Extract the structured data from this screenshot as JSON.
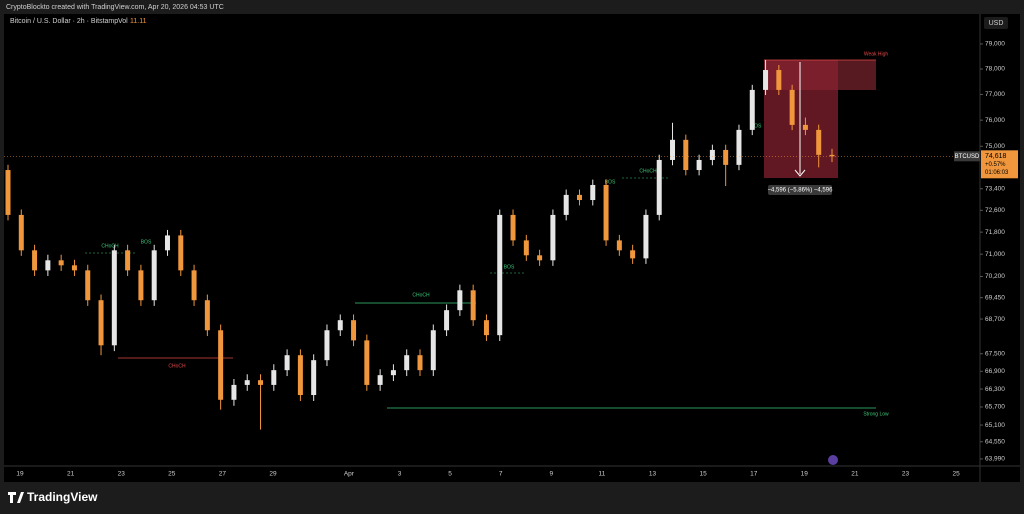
{
  "chart_data": {
    "type": "candlestick",
    "watermark": "CryptoBlockto created with TradingView.com, Apr 20, 2026 04:53 UTC",
    "title": "Bitcoin / U.S. Dollar · 2h · Bitstamp",
    "volume_label": "Vol",
    "volume_value": "11.11",
    "currency": "USD",
    "brand": "TradingView",
    "log_scale": true,
    "up_color": "#e6e6e6",
    "down_color": "#f0963c",
    "ylim": [
      63760,
      80210
    ],
    "yticks": [
      {
        "value": 79000,
        "label": "79,000"
      },
      {
        "value": 78000,
        "label": "78,000"
      },
      {
        "value": 77000,
        "label": "77,000"
      },
      {
        "value": 76000,
        "label": "76,000"
      },
      {
        "value": 75000,
        "label": "75,000"
      },
      {
        "value": 73400,
        "label": "73,400"
      },
      {
        "value": 72600,
        "label": "72,600"
      },
      {
        "value": 71800,
        "label": "71,800"
      },
      {
        "value": 71000,
        "label": "71,000"
      },
      {
        "value": 70200,
        "label": "70,200"
      },
      {
        "value": 69450,
        "label": "69,450"
      },
      {
        "value": 68700,
        "label": "68,700"
      },
      {
        "value": 67500,
        "label": "67,500"
      },
      {
        "value": 66900,
        "label": "66,900"
      },
      {
        "value": 66300,
        "label": "66,300"
      },
      {
        "value": 65700,
        "label": "65,700"
      },
      {
        "value": 65100,
        "label": "65,100"
      },
      {
        "value": 64550,
        "label": "64,550"
      },
      {
        "value": 63990,
        "label": "63,990"
      }
    ],
    "x_tick_labels": [
      "19",
      "21",
      "23",
      "25",
      "27",
      "29",
      "Apr",
      "3",
      "5",
      "7",
      "9",
      "11",
      "13",
      "15",
      "17",
      "19",
      "21",
      "23",
      "25"
    ],
    "open": [
      74100,
      72430,
      71140,
      70420,
      70780,
      70600,
      70420,
      69360,
      67790,
      71140,
      70420,
      69360,
      71140,
      71680,
      70420,
      69360,
      68310,
      65940,
      66440,
      66600,
      66440,
      66940,
      67450,
      66100,
      67280,
      68310,
      68660,
      67960,
      66440,
      66770,
      66940,
      67450,
      66940,
      68310,
      69010,
      69710,
      68660,
      68140,
      72430,
      71500,
      70960,
      70780,
      72430,
      73170,
      72980,
      73540,
      71500,
      71140,
      70850,
      72430,
      74480,
      75245,
      74100,
      74480,
      74860,
      74294,
      75626,
      77177,
      77960,
      77177,
      75818,
      75626,
      74673
    ],
    "high": [
      74300,
      72630,
      71340,
      70980,
      70980,
      70800,
      70620,
      69560,
      71340,
      71340,
      70620,
      71340,
      71880,
      71880,
      70620,
      69560,
      68510,
      66640,
      66800,
      66800,
      67140,
      67650,
      67650,
      67480,
      68510,
      68860,
      68860,
      68160,
      66970,
      67140,
      67650,
      67650,
      68510,
      69210,
      69910,
      69910,
      68860,
      72630,
      72630,
      71700,
      71160,
      72630,
      73370,
      73370,
      73740,
      73740,
      71700,
      71340,
      72630,
      74680,
      75900,
      75445,
      74680,
      75060,
      75060,
      75826,
      77377,
      78361,
      78160,
      77377,
      76100,
      75826,
      74900
    ],
    "low": [
      72230,
      70940,
      70220,
      70220,
      70400,
      70220,
      69160,
      67450,
      67590,
      70220,
      69160,
      69160,
      70940,
      70220,
      69160,
      68110,
      65610,
      65740,
      66240,
      64950,
      66240,
      66740,
      65900,
      65900,
      67080,
      68110,
      67760,
      66240,
      66240,
      66570,
      66740,
      66740,
      66740,
      68110,
      68810,
      68460,
      67940,
      67940,
      71300,
      70760,
      70580,
      70580,
      72230,
      72780,
      72780,
      71300,
      70940,
      70650,
      70650,
      72230,
      74280,
      73900,
      73900,
      74280,
      73500,
      74094,
      75426,
      76977,
      76977,
      75618,
      75426,
      74200,
      74400
    ],
    "close": [
      72430,
      71140,
      70420,
      70780,
      70600,
      70420,
      69360,
      67790,
      71140,
      70420,
      69360,
      71140,
      71680,
      70420,
      69360,
      68310,
      65940,
      66440,
      66600,
      66440,
      66940,
      67450,
      66100,
      67280,
      68310,
      68660,
      67960,
      66440,
      66770,
      66940,
      67450,
      66940,
      68310,
      69010,
      69710,
      68660,
      68140,
      72430,
      71500,
      70960,
      70780,
      72430,
      73170,
      72980,
      73540,
      71500,
      71140,
      70850,
      72430,
      74480,
      75245,
      74100,
      74480,
      74860,
      74294,
      75626,
      77177,
      77960,
      77177,
      75818,
      75626,
      74673,
      74618
    ],
    "last_price": {
      "symbol": "BTCUSD",
      "price": "74,618",
      "change": "+0.57%",
      "countdown": "01:06:03"
    },
    "measure_label": "−4,596 (−5.86%) −4,596",
    "annotations": [
      {
        "text": "CHoCH",
        "color": "#e04848"
      },
      {
        "text": "CHoCH",
        "color": "#3cc878"
      },
      {
        "text": "Strong Low",
        "color": "#3cc878"
      },
      {
        "text": "Weak High",
        "color": "#e04848"
      },
      {
        "text": "CHoCH",
        "color": "#3cc878"
      },
      {
        "text": "BOS",
        "color": "#3cc878"
      },
      {
        "text": "BOS",
        "color": "#3cc878"
      },
      {
        "text": "CHoCH",
        "color": "#3cc878"
      },
      {
        "text": "BOS",
        "color": "#3cc878"
      },
      {
        "text": "BOS",
        "color": "#3cc878"
      }
    ]
  }
}
